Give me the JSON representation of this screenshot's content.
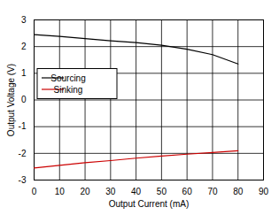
{
  "chart_data": {
    "type": "line",
    "x_label": "Output Current (mA)",
    "y_label": "Output Voltage (V)",
    "x": [
      0,
      10,
      20,
      30,
      40,
      50,
      60,
      70,
      80
    ],
    "series": [
      {
        "name": "Sourcing",
        "color": "#000000",
        "values": [
          2.45,
          2.38,
          2.3,
          2.22,
          2.15,
          2.05,
          1.9,
          1.7,
          1.35
        ]
      },
      {
        "name": "Sinking",
        "color": "#cc0000",
        "values": [
          -2.55,
          -2.45,
          -2.35,
          -2.27,
          -2.18,
          -2.1,
          -2.03,
          -1.97,
          -1.9
        ]
      }
    ],
    "xlim": [
      0,
      90
    ],
    "xticks": [
      0,
      10,
      20,
      30,
      40,
      50,
      60,
      70,
      80,
      90
    ],
    "ylim": [
      -3,
      3
    ],
    "yticks": [
      -3,
      -2,
      -1,
      0,
      1,
      2,
      3
    ],
    "grid": true,
    "legend": "left"
  }
}
